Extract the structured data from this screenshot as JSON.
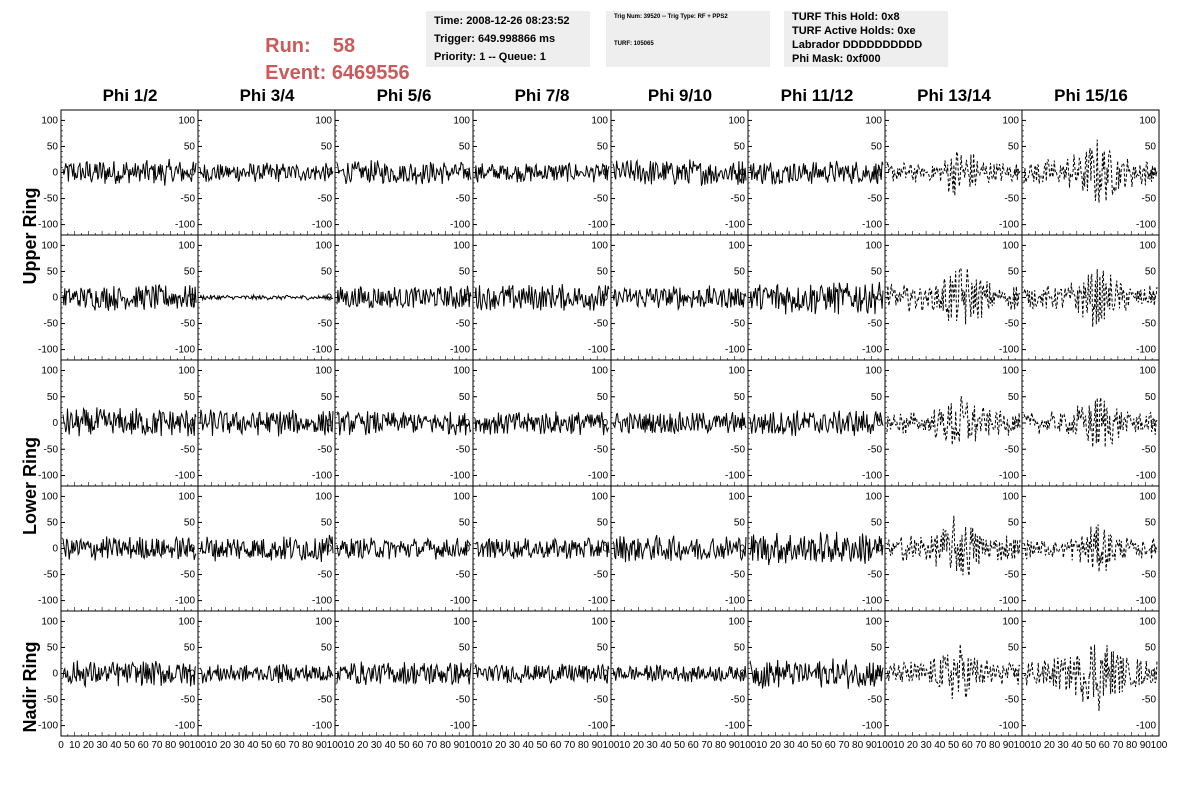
{
  "header": {
    "run_label": "Run:",
    "run_value": "58",
    "event_label": "Event:",
    "event_value": "6469556"
  },
  "info_box_1": {
    "time": "Time: 2008-12-26 08:23:52",
    "trigger": "Trigger: 649.998866 ms",
    "priority": "Priority: 1 -- Queue: 1"
  },
  "info_box_2": {
    "trig": "Trig Num: 39520 -- Trig Type: RF + PPS2",
    "turf": "TURF: 105065"
  },
  "info_box_3": {
    "hold": "TURF This Hold: 0x8",
    "active": "TURF Active Holds: 0xe",
    "labrador": "Labrador DDDDDDDDDD",
    "mask": "Phi Mask: 0xf000"
  },
  "columns": [
    "Phi 1/2",
    "Phi 3/4",
    "Phi 5/6",
    "Phi 7/8",
    "Phi 9/10",
    "Phi 11/12",
    "Phi 13/14",
    "Phi 15/16"
  ],
  "rows": [
    {
      "label": "Upper Ring",
      "span": 2
    },
    {
      "label": "Lower Ring",
      "span": 2
    },
    {
      "label": "Nadir Ring",
      "span": 1
    }
  ],
  "chart_data": {
    "type": "line",
    "xlim": [
      0,
      100
    ],
    "ylim": [
      -120,
      120
    ],
    "y_ticks": [
      100,
      50,
      0,
      -50,
      -100
    ],
    "x_tick_labels": [
      "0",
      "10",
      "20",
      "30",
      "40",
      "50",
      "60",
      "70",
      "80",
      "90",
      "100"
    ],
    "grid": false,
    "panel_rows": 5,
    "panel_cols": 8,
    "dashed_columns": [
      6,
      7
    ],
    "amplitudes": [
      [
        22,
        16,
        20,
        16,
        22,
        20,
        30,
        40
      ],
      [
        22,
        4,
        20,
        22,
        20,
        28,
        40,
        35
      ],
      [
        25,
        22,
        20,
        20,
        18,
        22,
        35,
        35
      ],
      [
        20,
        22,
        18,
        18,
        22,
        28,
        40,
        30
      ],
      [
        22,
        16,
        20,
        16,
        14,
        25,
        35,
        45
      ]
    ],
    "line_color": "#000000"
  }
}
